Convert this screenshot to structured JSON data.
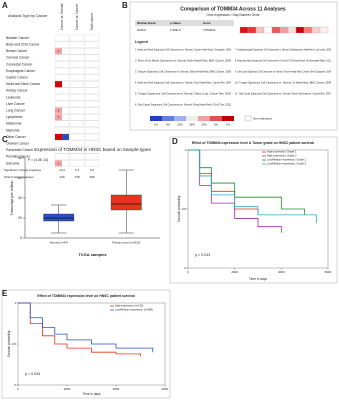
{
  "panels": {
    "a": {
      "label": "A",
      "title": "Analysis Type by Cancer",
      "columns": [
        "Cancer vs. Normal",
        "Cancer vs. Cancer",
        "Multi-cancer"
      ],
      "rows": [
        "Bladder Cancer",
        "Brain and CNS Cancer",
        "Breast Cancer",
        "Cervical Cancer",
        "Colorectal Cancer",
        "Esophageal Cancer",
        "Gastric Cancer",
        "Head and Neck Cancer",
        "Kidney Cancer",
        "Leukemia",
        "Liver Cancer",
        "Lung Cancer",
        "Lymphoma",
        "Melanoma",
        "Myeloma",
        "Other Cancer",
        "Ovarian Cancer",
        "Pancreatic Cancer",
        "Prostate Cancer",
        "Sarcoma"
      ],
      "up_counts": [
        null,
        null,
        1,
        null,
        null,
        null,
        null,
        2,
        null,
        null,
        null,
        1,
        1,
        null,
        null,
        2,
        null,
        null,
        null,
        1
      ],
      "down_counts": [
        null,
        null,
        null,
        null,
        null,
        null,
        null,
        null,
        null,
        null,
        null,
        null,
        null,
        null,
        null,
        1,
        null,
        null,
        null,
        null
      ],
      "footer": {
        "significant_label": "Significant Unique Analyses",
        "total_label": "Total Unique Analyses",
        "significant": [
          "12 0",
          "0 3",
          "0 0"
        ],
        "total": [
          "449",
          "738",
          "268"
        ]
      }
    },
    "b": {
      "label": "B",
      "title": "Comparison of TOMM34 Across 11 Analyses",
      "subtitle": "Over-expression / Gap Number Gene",
      "headers": [
        "Median Rank",
        "p-Value",
        "Gene"
      ],
      "row": [
        "2045.0",
        "2.38E-5",
        "TOMM34"
      ],
      "cell_colors": [
        "#d11",
        "#e33",
        "#f8c0c0",
        "#fff",
        "#e55",
        "#f0a0a0",
        "#fdd",
        "#c00",
        "#f77",
        "#fcc",
        "#fee"
      ],
      "legend_title": "Legend",
      "legend": [
        "1. Head and Neck Squamous Cell Carcinoma vs. Normal, Cromer Head-Neck, Oncogene, 2004",
        "2. Floor of the Mouth Carcinoma vs. Normal, Estilo Head-Neck, BMC Cancer, 2009",
        "3. Tongue Squamous Cell Carcinoma vs. Normal, Estilo Head-Neck, BMC Cancer, 2009",
        "4. Head and Neck Squamous Cell Carcinoma vs. Normal, Ginos Head-Neck, Cancer Res, 2004",
        "5. Tongue Squamous Cell Carcinoma vs. Normal, Talbot Lung, Cancer Res, 2005",
        "6. Oral Cavity Squamous Cell Carcinoma vs. Normal, Peng Head-Neck, PLoS One, 2011",
        "7. Hypopharyngeal Squamous Cell Carcinoma vs. Normal, Schlingemann Head-Neck, Lab Invest, 2005",
        "8. Head and Neck Squamous Cell Carcinoma vs. Normal, TCGA Head-Neck, No Associated Paper, 2011",
        "9. Oral Cavity Squamous Cell Carcinoma vs. Normal, Toruner Head-Neck, Cancer Genet Cytogenet, 2004",
        "10. Tongue Squamous Cell Carcinoma vs. Normal, Ye Head-Neck, BMC Cancer, 2008",
        "11. Oral Cavity Squamous Cell Carcinoma vs. Normal, Pyeon Multi-cancer, Cancer Res, 2007"
      ],
      "scale": [
        "1%",
        "5%",
        "10%",
        "25%",
        "10%",
        "5%",
        "1%"
      ],
      "not_measured": "Not measured"
    }
  },
  "chart_data": [
    {
      "type": "box",
      "label": "C",
      "title": "Expression of TOMM34 in HNSC based on Sample types",
      "annotation": "P = (4.3E-14)",
      "ylabel": "Transcript per million",
      "xlabel": "TCGA samples",
      "categories": [
        "Normal (n=44)",
        "Primary tumor (n=520)"
      ],
      "colors": [
        "#2a50c8",
        "#e8341c"
      ],
      "min": [
        5,
        5
      ],
      "q1": [
        17,
        28
      ],
      "median": [
        20,
        34
      ],
      "q3": [
        24,
        43
      ],
      "max": [
        33,
        68
      ],
      "ylim": [
        0,
        80
      ],
      "yticks": [
        0,
        20,
        40,
        60,
        80
      ]
    },
    {
      "type": "km",
      "label": "D",
      "title": "Effect of TOMM34 expression level & Tumor grade on HNSC patient survival",
      "annotation": "p = 0.033",
      "xlabel": "Time in days",
      "ylabel": "Survival probability",
      "series": [
        {
          "name": "High expression; Grade 1",
          "color": "#e8341c",
          "x": [
            0,
            500,
            1000,
            2000,
            3000
          ],
          "y": [
            1,
            0.8,
            0.65,
            0.5,
            0.45
          ]
        },
        {
          "name": "High expression; Grade 2",
          "color": "#9c2ab0",
          "x": [
            0,
            500,
            1000,
            2000,
            3000,
            4000
          ],
          "y": [
            1,
            0.7,
            0.55,
            0.42,
            0.35,
            0.3
          ]
        },
        {
          "name": "Low/Medium-expression; Grade 1",
          "color": "#1c8c2c",
          "x": [
            0,
            500,
            1000,
            2000,
            4000,
            5000
          ],
          "y": [
            1,
            0.85,
            0.72,
            0.6,
            0.5,
            0.45
          ]
        },
        {
          "name": "Low/Medium-expression; Grade 2",
          "color": "#2aa8c8",
          "x": [
            0,
            500,
            1000,
            2000,
            3000,
            5500
          ],
          "y": [
            1,
            0.78,
            0.62,
            0.52,
            0.45,
            0.38
          ]
        }
      ],
      "xlim": [
        0,
        6000
      ],
      "xticks": [
        0,
        2000,
        4000,
        6000
      ],
      "ylim": [
        0,
        1
      ],
      "yticks": [
        0,
        0.5,
        1
      ]
    },
    {
      "type": "km",
      "label": "E",
      "title": "Effect of TOMM34 expression level on HNSC patient survival",
      "annotation": "p = 0.034",
      "xlabel": "Time in days",
      "ylabel": "Survival probability",
      "series": [
        {
          "name": "High expression (n=130)",
          "color": "#e8341c",
          "x": [
            0,
            500,
            1000,
            1500,
            2000,
            3000,
            4000,
            5000
          ],
          "y": [
            1,
            0.75,
            0.6,
            0.5,
            0.45,
            0.4,
            0.38,
            0.35
          ]
        },
        {
          "name": "Low/Medium-expression (n=389)",
          "color": "#2a50c8",
          "x": [
            0,
            500,
            1000,
            1500,
            2000,
            3000,
            4000,
            5500
          ],
          "y": [
            1,
            0.82,
            0.7,
            0.62,
            0.55,
            0.5,
            0.45,
            0.4
          ]
        }
      ],
      "xlim": [
        0,
        6000
      ],
      "xticks": [
        0,
        2000,
        4000,
        6000
      ],
      "ylim": [
        0,
        1
      ],
      "yticks": [
        0,
        0.5,
        1
      ]
    }
  ]
}
